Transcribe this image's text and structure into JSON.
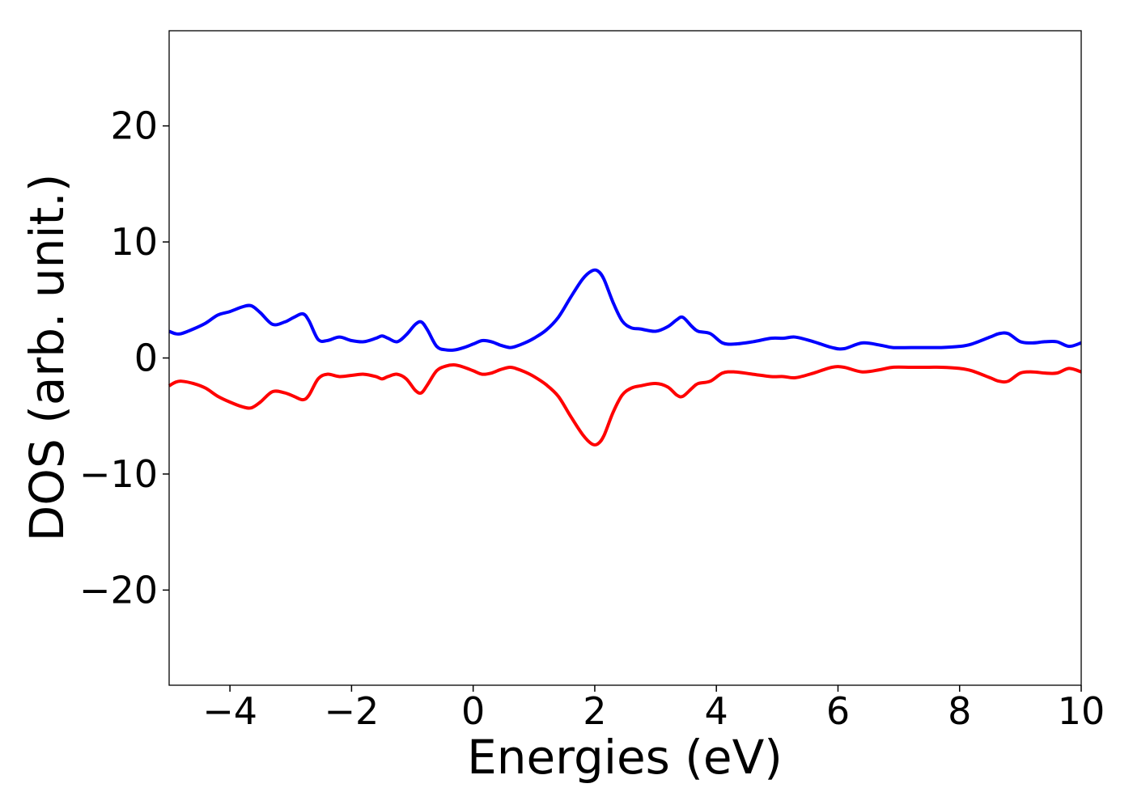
{
  "chart_data": {
    "type": "line",
    "title": "",
    "xlabel": "Energies (eV)",
    "ylabel": "DOS (arb. unit.)",
    "xlim": [
      -5,
      10
    ],
    "ylim": [
      -28.2,
      28.2
    ],
    "xticks": [
      -4,
      -2,
      0,
      2,
      4,
      6,
      8,
      10
    ],
    "xtick_labels": [
      "−4",
      "−2",
      "0",
      "2",
      "4",
      "6",
      "8",
      "10"
    ],
    "yticks": [
      -20,
      -10,
      0,
      10,
      20
    ],
    "ytick_labels": [
      "−20",
      "−10",
      "0",
      "10",
      "20"
    ],
    "grid": false,
    "legend": null,
    "series": [
      {
        "color": "#0000ff",
        "x": [
          -5.0,
          -4.9,
          -4.8,
          -4.6,
          -4.4,
          -4.2,
          -4.0,
          -3.8,
          -3.65,
          -3.5,
          -3.3,
          -3.1,
          -2.95,
          -2.8,
          -2.7,
          -2.55,
          -2.4,
          -2.2,
          -2.0,
          -1.8,
          -1.6,
          -1.5,
          -1.4,
          -1.25,
          -1.1,
          -0.95,
          -0.85,
          -0.75,
          -0.6,
          -0.45,
          -0.3,
          -0.15,
          0.0,
          0.15,
          0.3,
          0.45,
          0.6,
          0.7,
          0.85,
          1.0,
          1.2,
          1.4,
          1.6,
          1.8,
          1.95,
          2.05,
          2.15,
          2.3,
          2.45,
          2.6,
          2.75,
          3.0,
          3.2,
          3.35,
          3.45,
          3.6,
          3.7,
          3.9,
          4.1,
          4.3,
          4.6,
          4.9,
          5.1,
          5.3,
          5.6,
          5.9,
          6.1,
          6.4,
          6.7,
          6.9,
          7.2,
          7.5,
          7.7,
          8.0,
          8.2,
          8.5,
          8.65,
          8.8,
          9.0,
          9.2,
          9.4,
          9.6,
          9.8,
          10.0
        ],
        "y": [
          2.3,
          2.1,
          2.1,
          2.5,
          3.0,
          3.7,
          4.0,
          4.4,
          4.5,
          3.9,
          2.9,
          3.1,
          3.5,
          3.8,
          3.2,
          1.6,
          1.5,
          1.8,
          1.5,
          1.4,
          1.7,
          1.9,
          1.7,
          1.4,
          2.0,
          2.9,
          3.1,
          2.4,
          1.0,
          0.7,
          0.7,
          0.9,
          1.2,
          1.5,
          1.4,
          1.1,
          0.9,
          1.0,
          1.3,
          1.7,
          2.4,
          3.5,
          5.2,
          6.8,
          7.5,
          7.5,
          6.8,
          4.8,
          3.2,
          2.6,
          2.5,
          2.3,
          2.7,
          3.3,
          3.5,
          2.7,
          2.3,
          2.1,
          1.3,
          1.2,
          1.4,
          1.7,
          1.7,
          1.8,
          1.4,
          0.9,
          0.8,
          1.3,
          1.1,
          0.9,
          0.9,
          0.9,
          0.9,
          1.0,
          1.2,
          1.8,
          2.1,
          2.1,
          1.4,
          1.3,
          1.4,
          1.4,
          1.0,
          1.3
        ]
      },
      {
        "color": "#ff0000",
        "x": [
          -5.0,
          -4.9,
          -4.8,
          -4.6,
          -4.4,
          -4.2,
          -4.0,
          -3.8,
          -3.65,
          -3.5,
          -3.3,
          -3.1,
          -2.95,
          -2.8,
          -2.7,
          -2.55,
          -2.4,
          -2.2,
          -2.0,
          -1.8,
          -1.6,
          -1.5,
          -1.4,
          -1.25,
          -1.1,
          -0.95,
          -0.85,
          -0.75,
          -0.6,
          -0.45,
          -0.3,
          -0.15,
          0.0,
          0.15,
          0.3,
          0.45,
          0.6,
          0.7,
          0.85,
          1.0,
          1.2,
          1.4,
          1.6,
          1.8,
          1.95,
          2.05,
          2.15,
          2.3,
          2.45,
          2.6,
          2.75,
          3.0,
          3.2,
          3.35,
          3.45,
          3.6,
          3.7,
          3.9,
          4.1,
          4.3,
          4.6,
          4.9,
          5.1,
          5.3,
          5.6,
          5.9,
          6.1,
          6.4,
          6.7,
          6.9,
          7.2,
          7.5,
          7.7,
          8.0,
          8.2,
          8.5,
          8.65,
          8.8,
          9.0,
          9.2,
          9.4,
          9.6,
          9.8,
          10.0
        ],
        "y": [
          -2.4,
          -2.1,
          -2.0,
          -2.2,
          -2.6,
          -3.3,
          -3.8,
          -4.2,
          -4.3,
          -3.8,
          -2.9,
          -3.0,
          -3.3,
          -3.6,
          -3.2,
          -1.8,
          -1.4,
          -1.6,
          -1.5,
          -1.4,
          -1.6,
          -1.8,
          -1.6,
          -1.4,
          -1.8,
          -2.8,
          -3.0,
          -2.3,
          -1.1,
          -0.7,
          -0.6,
          -0.8,
          -1.1,
          -1.4,
          -1.3,
          -1.0,
          -0.8,
          -0.9,
          -1.2,
          -1.6,
          -2.3,
          -3.3,
          -5.0,
          -6.6,
          -7.4,
          -7.4,
          -6.7,
          -4.7,
          -3.2,
          -2.6,
          -2.4,
          -2.2,
          -2.5,
          -3.2,
          -3.3,
          -2.6,
          -2.2,
          -2.0,
          -1.3,
          -1.2,
          -1.4,
          -1.6,
          -1.6,
          -1.7,
          -1.3,
          -0.8,
          -0.8,
          -1.2,
          -1.0,
          -0.8,
          -0.8,
          -0.8,
          -0.8,
          -0.9,
          -1.1,
          -1.7,
          -2.0,
          -2.0,
          -1.3,
          -1.2,
          -1.3,
          -1.3,
          -0.9,
          -1.2
        ]
      }
    ]
  }
}
